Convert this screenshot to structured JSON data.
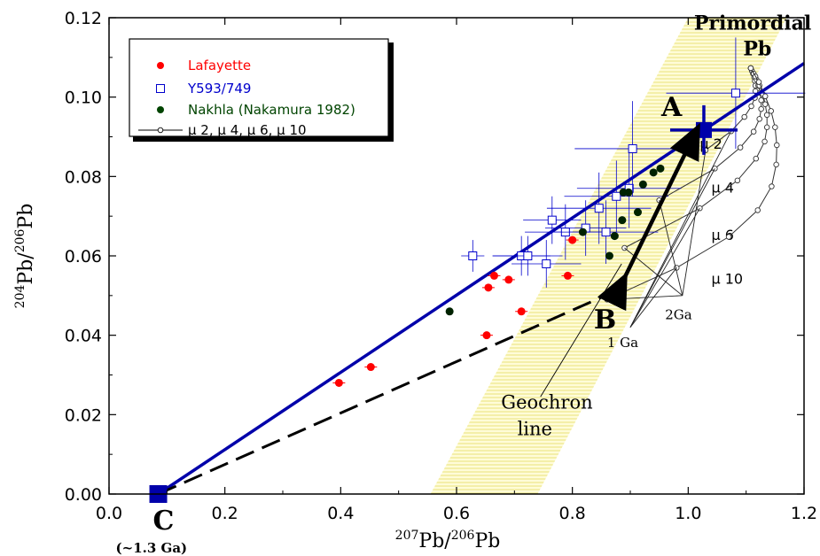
{
  "chart_data": {
    "type": "scatter",
    "xlabel": "207Pb/206Pb",
    "ylabel": "204Pb/206Pb",
    "xaxis_label": {
      "sup": "207",
      "base": "Pb/",
      "sup2": "206",
      "base2": "Pb"
    },
    "yaxis_label": {
      "sup": "204",
      "base": "Pb/",
      "sup2": "206",
      "base2": "Pb"
    },
    "xlim": [
      0.0,
      1.2
    ],
    "ylim": [
      0.0,
      0.12
    ],
    "xticks": [
      "0.0",
      "0.2",
      "0.4",
      "0.6",
      "0.8",
      "1.0",
      "1.2"
    ],
    "yticks": [
      "0.00",
      "0.02",
      "0.04",
      "0.06",
      "0.08",
      "0.10",
      "0.12"
    ],
    "grid": false,
    "legend_placement": "top-left",
    "legend": [
      {
        "label": "Lafayette",
        "color": "#ff0000",
        "marker": "filled-circle"
      },
      {
        "label": "Y593/749",
        "color": "#0000cc",
        "marker": "open-square"
      },
      {
        "label": "Nakhla (Nakamura 1982)",
        "color": "#004400",
        "marker": "filled-circle"
      },
      {
        "label": "μ 2, μ 4, μ 6, μ 10",
        "color": "#000000",
        "marker": "open-circle-line"
      }
    ],
    "series": [
      {
        "name": "Lafayette",
        "color": "#ff0000",
        "points": [
          [
            0.397,
            0.028
          ],
          [
            0.452,
            0.032
          ],
          [
            0.652,
            0.04
          ],
          [
            0.655,
            0.052
          ],
          [
            0.665,
            0.055
          ],
          [
            0.69,
            0.054
          ],
          [
            0.712,
            0.046
          ],
          [
            0.792,
            0.055
          ],
          [
            0.8,
            0.064
          ]
        ]
      },
      {
        "name": "Y593/749",
        "color": "#0000cc",
        "points": [
          {
            "x": 0.628,
            "y": 0.06,
            "xerr": 0.02,
            "yerr": 0.004
          },
          {
            "x": 0.712,
            "y": 0.06,
            "xerr": 0.05,
            "yerr": 0.005
          },
          {
            "x": 0.723,
            "y": 0.06,
            "xerr": 0.06,
            "yerr": 0.005
          },
          {
            "x": 0.755,
            "y": 0.058,
            "xerr": 0.06,
            "yerr": 0.006
          },
          {
            "x": 0.765,
            "y": 0.069,
            "xerr": 0.05,
            "yerr": 0.006
          },
          {
            "x": 0.788,
            "y": 0.066,
            "xerr": 0.07,
            "yerr": 0.007
          },
          {
            "x": 0.823,
            "y": 0.067,
            "xerr": 0.07,
            "yerr": 0.007
          },
          {
            "x": 0.846,
            "y": 0.072,
            "xerr": 0.09,
            "yerr": 0.009
          },
          {
            "x": 0.858,
            "y": 0.066,
            "xerr": 0.09,
            "yerr": 0.008
          },
          {
            "x": 0.876,
            "y": 0.075,
            "xerr": 0.09,
            "yerr": 0.009
          },
          {
            "x": 0.898,
            "y": 0.077,
            "xerr": 0.09,
            "yerr": 0.01
          },
          {
            "x": 0.904,
            "y": 0.087,
            "xerr": 0.1,
            "yerr": 0.012
          },
          {
            "x": 1.082,
            "y": 0.101,
            "xerr": 0.12,
            "yerr": 0.014
          }
        ]
      },
      {
        "name": "Nakhla (Nakamura 1982)",
        "color": "#002200",
        "points": [
          [
            0.588,
            0.046
          ],
          [
            0.818,
            0.066
          ],
          [
            0.864,
            0.06
          ],
          [
            0.873,
            0.065
          ],
          [
            0.886,
            0.069
          ],
          [
            0.888,
            0.076
          ],
          [
            0.897,
            0.076
          ],
          [
            0.913,
            0.071
          ],
          [
            0.922,
            0.078
          ],
          [
            0.94,
            0.081
          ],
          [
            0.952,
            0.082
          ]
        ]
      }
    ],
    "mu_curves": {
      "labels": [
        "μ 2",
        "μ 4",
        "μ 6",
        "μ 10"
      ],
      "primordial": [
        1.108,
        0.1073
      ],
      "curves": [
        {
          "label": "μ 2",
          "label_at": [
            1.02,
            0.087
          ],
          "points": [
            [
              1.108,
              0.1073
            ],
            [
              1.11,
              0.1066
            ],
            [
              1.112,
              0.1059
            ],
            [
              1.114,
              0.105
            ],
            [
              1.115,
              0.1041
            ],
            [
              1.116,
              0.1029
            ],
            [
              1.116,
              0.1015
            ],
            [
              1.115,
              0.0998
            ],
            [
              1.109,
              0.0977
            ],
            [
              1.097,
              0.095
            ],
            [
              1.074,
              0.0914
            ],
            [
              1.03,
              0.0866
            ]
          ]
        },
        {
          "label": "μ 4",
          "label_at": [
            1.04,
            0.076
          ],
          "points": [
            [
              1.108,
              0.1073
            ],
            [
              1.113,
              0.1059
            ],
            [
              1.118,
              0.1044
            ],
            [
              1.121,
              0.1029
            ],
            [
              1.124,
              0.1011
            ],
            [
              1.126,
              0.0992
            ],
            [
              1.126,
              0.097
            ],
            [
              1.123,
              0.0945
            ],
            [
              1.113,
              0.0913
            ],
            [
              1.09,
              0.0873
            ],
            [
              1.046,
              0.082
            ],
            [
              0.95,
              0.074
            ]
          ]
        },
        {
          "label": "μ 6",
          "label_at": [
            1.04,
            0.064
          ],
          "points": [
            [
              1.108,
              0.1073
            ],
            [
              1.116,
              0.1052
            ],
            [
              1.123,
              0.1029
            ],
            [
              1.129,
              0.1007
            ],
            [
              1.133,
              0.0982
            ],
            [
              1.136,
              0.0955
            ],
            [
              1.136,
              0.0924
            ],
            [
              1.132,
              0.0888
            ],
            [
              1.117,
              0.0845
            ],
            [
              1.085,
              0.079
            ],
            [
              1.02,
              0.072
            ],
            [
              0.89,
              0.062
            ]
          ]
        },
        {
          "label": "μ 10",
          "label_at": [
            1.04,
            0.053
          ],
          "points": [
            [
              1.108,
              0.1073
            ],
            [
              1.122,
              0.1038
            ],
            [
              1.133,
              0.1002
            ],
            [
              1.143,
              0.0965
            ],
            [
              1.15,
              0.0924
            ],
            [
              1.153,
              0.0879
            ],
            [
              1.152,
              0.083
            ],
            [
              1.144,
              0.0775
            ],
            [
              1.12,
              0.0715
            ],
            [
              1.07,
              0.0648
            ],
            [
              0.98,
              0.057
            ],
            [
              0.86,
              0.049
            ]
          ]
        }
      ],
      "age_lines": [
        {
          "label": "2Ga",
          "label_at": [
            0.96,
            0.044
          ],
          "anchor": [
            0.99,
            0.05
          ],
          "targets": [
            [
              1.03,
              0.0866
            ],
            [
              0.95,
              0.074
            ],
            [
              0.89,
              0.062
            ],
            [
              0.86,
              0.049
            ]
          ]
        },
        {
          "label": "1 Ga",
          "label_at": [
            0.86,
            0.037
          ],
          "anchor": [
            0.9,
            0.042
          ],
          "targets": [
            [
              1.074,
              0.0914
            ],
            [
              1.046,
              0.082
            ],
            [
              1.02,
              0.072
            ],
            [
              0.98,
              0.057
            ]
          ]
        }
      ]
    },
    "lines": [
      {
        "name": "C-A solid",
        "color": "#0000aa",
        "points": [
          [
            0.085,
            0.0
          ],
          [
            1.2,
            0.1085
          ]
        ]
      },
      {
        "name": "C-B dashed",
        "color": "#000000",
        "points": [
          [
            0.085,
            0.0
          ],
          [
            0.88,
            0.0515
          ]
        ]
      }
    ],
    "geochron_band": {
      "x_bottom": [
        0.555,
        0.74
      ],
      "x_top": [
        1.0,
        1.17
      ]
    },
    "points_special": {
      "A": {
        "x": 1.027,
        "y": 0.0917,
        "label": "A"
      },
      "B": {
        "x": 0.88,
        "y": 0.0515,
        "label": "B"
      },
      "C": {
        "x": 0.085,
        "y": 0.0,
        "label": "C",
        "sublabel": "(~1.3 Ga)"
      }
    },
    "annotations": [
      {
        "text": "Primordial",
        "at": [
          1.01,
          0.117
        ]
      },
      {
        "text": "Pb",
        "at": [
          1.095,
          0.1105
        ]
      },
      {
        "text": "Geochron",
        "at": [
          0.677,
          0.0215
        ]
      },
      {
        "text": "line",
        "at": [
          0.705,
          0.0148
        ]
      }
    ],
    "geochron_leader": [
      [
        0.745,
        0.0245
      ],
      [
        0.885,
        0.058
      ]
    ]
  }
}
